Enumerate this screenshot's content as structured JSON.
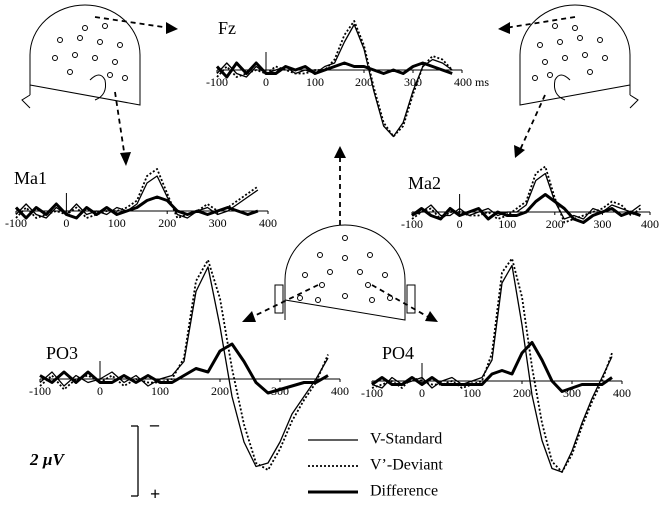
{
  "chart_data": [
    {
      "type": "line",
      "title": "Fz",
      "x": [
        -100,
        -80,
        -60,
        -40,
        -20,
        0,
        20,
        40,
        60,
        80,
        100,
        120,
        140,
        160,
        180,
        200,
        220,
        240,
        260,
        280,
        300,
        320,
        340,
        360,
        380
      ],
      "xlim": [
        -100,
        400
      ],
      "xticks": [
        -100,
        0,
        100,
        200,
        300,
        {
          "value": 400,
          "label": "400 ms"
        }
      ],
      "ylim": [
        2.2,
        -1.6
      ],
      "grid": false,
      "series": [
        {
          "name": "V-Standard",
          "color": "#000000",
          "line_style": "solid",
          "line_width": 1.3,
          "values": [
            0.1,
            -0.2,
            0.1,
            0.2,
            -0.1,
            0.1,
            0.0,
            -0.1,
            0.1,
            0.0,
            0.1,
            -0.1,
            -0.2,
            -0.8,
            -1.3,
            -0.6,
            0.6,
            1.6,
            1.9,
            1.5,
            0.6,
            -0.1,
            -0.3,
            -0.2,
            0.0
          ]
        },
        {
          "name": "V’-Deviant",
          "color": "#000000",
          "line_style": "dotted",
          "line_width": 1.8,
          "values": [
            0.2,
            -0.1,
            0.2,
            0.1,
            0.0,
            0.1,
            -0.1,
            0.0,
            0.1,
            0.1,
            0.0,
            0.0,
            -0.3,
            -1.0,
            -1.4,
            -0.7,
            0.5,
            1.5,
            1.9,
            1.6,
            0.7,
            -0.1,
            -0.4,
            -0.3,
            0.0
          ]
        },
        {
          "name": "Difference",
          "color": "#000000",
          "line_style": "solid",
          "line_width": 3,
          "values": [
            -0.1,
            0.2,
            -0.2,
            0.1,
            -0.2,
            0.1,
            0.1,
            -0.1,
            0.0,
            -0.1,
            0.1,
            0.0,
            -0.1,
            -0.2,
            -0.1,
            -0.1,
            0.0,
            0.1,
            0.0,
            0.1,
            -0.1,
            -0.2,
            -0.1,
            0.0,
            0.1
          ]
        }
      ]
    },
    {
      "type": "line",
      "title": "Ma1",
      "x": [
        -100,
        -80,
        -60,
        -40,
        -20,
        0,
        20,
        40,
        60,
        80,
        100,
        120,
        140,
        160,
        180,
        200,
        220,
        240,
        260,
        280,
        300,
        320,
        340,
        360,
        380
      ],
      "xlim": [
        -100,
        400
      ],
      "xticks": [
        -100,
        0,
        100,
        200,
        300,
        400
      ],
      "ylim": [
        1.0,
        -1.6
      ],
      "grid": false,
      "series": [
        {
          "name": "V-Standard",
          "color": "#000000",
          "line_style": "solid",
          "line_width": 1.3,
          "values": [
            0.1,
            -0.2,
            0.1,
            0.2,
            -0.1,
            0.1,
            -0.2,
            0.1,
            0.0,
            0.1,
            -0.1,
            0.0,
            -0.2,
            -0.8,
            -1.0,
            -0.4,
            0.1,
            0.2,
            0.0,
            -0.1,
            0.1,
            0.0,
            -0.2,
            -0.4,
            -0.6
          ]
        },
        {
          "name": "V’-Deviant",
          "color": "#000000",
          "line_style": "dotted",
          "line_width": 1.8,
          "values": [
            0.2,
            -0.1,
            0.2,
            0.1,
            0.0,
            0.1,
            -0.1,
            0.2,
            0.1,
            0.0,
            0.0,
            -0.1,
            -0.3,
            -1.0,
            -1.2,
            -0.5,
            0.2,
            0.1,
            0.0,
            -0.2,
            0.0,
            -0.1,
            -0.3,
            -0.5,
            -0.7
          ]
        },
        {
          "name": "Difference",
          "color": "#000000",
          "line_style": "solid",
          "line_width": 3,
          "values": [
            -0.1,
            0.2,
            -0.1,
            0.1,
            -0.2,
            0.1,
            0.2,
            -0.1,
            0.1,
            -0.1,
            0.1,
            0.0,
            -0.1,
            -0.3,
            -0.4,
            -0.3,
            0.0,
            0.1,
            0.0,
            0.1,
            0.0,
            -0.1,
            0.0,
            0.1,
            0.0
          ]
        }
      ]
    },
    {
      "type": "line",
      "title": "Ma2",
      "x": [
        -100,
        -80,
        -60,
        -40,
        -20,
        0,
        20,
        40,
        60,
        80,
        100,
        120,
        140,
        160,
        180,
        200,
        220,
        240,
        260,
        280,
        300,
        320,
        340,
        360,
        380
      ],
      "xlim": [
        -100,
        400
      ],
      "xticks": [
        -100,
        0,
        100,
        200,
        300,
        400
      ],
      "ylim": [
        1.0,
        -1.6
      ],
      "grid": false,
      "series": [
        {
          "name": "V-Standard",
          "color": "#000000",
          "line_style": "solid",
          "line_width": 1.3,
          "values": [
            0.1,
            0.0,
            -0.2,
            0.1,
            0.1,
            -0.1,
            0.1,
            0.0,
            -0.1,
            0.1,
            0.0,
            0.0,
            -0.2,
            -0.9,
            -1.1,
            -0.3,
            0.2,
            0.1,
            0.2,
            -0.1,
            0.0,
            -0.2,
            -0.1,
            0.0,
            -0.2
          ]
        },
        {
          "name": "V’-Deviant",
          "color": "#000000",
          "line_style": "dotted",
          "line_width": 1.8,
          "values": [
            0.2,
            0.0,
            -0.1,
            0.2,
            0.0,
            0.0,
            0.1,
            0.1,
            0.0,
            0.2,
            0.1,
            -0.1,
            -0.3,
            -1.1,
            -1.3,
            -0.4,
            0.3,
            0.2,
            0.1,
            0.0,
            -0.1,
            -0.3,
            -0.2,
            0.1,
            -0.1
          ]
        },
        {
          "name": "Difference",
          "color": "#000000",
          "line_style": "solid",
          "line_width": 3,
          "values": [
            0.1,
            -0.1,
            0.1,
            0.2,
            -0.1,
            0.1,
            0.0,
            -0.1,
            0.2,
            0.0,
            0.1,
            0.1,
            0.0,
            -0.3,
            -0.5,
            -0.3,
            -0.1,
            0.2,
            0.3,
            0.1,
            0.0,
            -0.1,
            0.1,
            0.0,
            0.1
          ]
        }
      ]
    },
    {
      "type": "line",
      "title": "PO3",
      "x": [
        -100,
        -80,
        -60,
        -40,
        -20,
        0,
        20,
        40,
        60,
        80,
        100,
        120,
        140,
        160,
        180,
        200,
        220,
        240,
        260,
        280,
        300,
        320,
        340,
        360,
        380
      ],
      "xlim": [
        -100,
        400
      ],
      "xticks": [
        -100,
        0,
        100,
        200,
        300,
        400
      ],
      "ylim": [
        3.0,
        -3.6
      ],
      "grid": false,
      "series": [
        {
          "name": "V-Standard",
          "color": "#000000",
          "line_style": "solid",
          "line_width": 1.3,
          "values": [
            0.1,
            -0.2,
            0.2,
            -0.1,
            0.1,
            0.0,
            -0.2,
            0.1,
            -0.1,
            0.2,
            0.0,
            -0.1,
            -0.5,
            -2.5,
            -3.2,
            -1.5,
            0.5,
            1.8,
            2.5,
            2.4,
            1.8,
            1.0,
            0.5,
            0.0,
            -0.6
          ]
        },
        {
          "name": "V’-Deviant",
          "color": "#000000",
          "line_style": "dotted",
          "line_width": 1.8,
          "values": [
            0.2,
            -0.1,
            0.3,
            0.0,
            -0.1,
            0.1,
            -0.1,
            0.2,
            0.0,
            0.1,
            0.1,
            0.0,
            -0.6,
            -2.8,
            -3.4,
            -2.3,
            -0.3,
            1.3,
            2.4,
            2.6,
            2.0,
            1.2,
            0.6,
            0.1,
            -0.7
          ]
        },
        {
          "name": "Difference",
          "color": "#000000",
          "line_style": "solid",
          "line_width": 3,
          "values": [
            -0.1,
            0.1,
            -0.2,
            0.1,
            -0.2,
            0.1,
            0.1,
            -0.1,
            0.1,
            -0.1,
            0.1,
            0.1,
            -0.1,
            -0.3,
            -0.2,
            -0.8,
            -1.0,
            -0.5,
            0.1,
            0.4,
            0.3,
            0.2,
            0.1,
            0.1,
            -0.1
          ]
        }
      ]
    },
    {
      "type": "line",
      "title": "PO4",
      "x": [
        -100,
        -80,
        -60,
        -40,
        -20,
        0,
        20,
        40,
        60,
        80,
        100,
        120,
        140,
        160,
        180,
        200,
        220,
        240,
        260,
        280,
        300,
        320,
        340,
        360,
        380
      ],
      "xlim": [
        -100,
        400
      ],
      "xticks": [
        -100,
        0,
        100,
        200,
        300,
        400
      ],
      "ylim": [
        3.0,
        -3.6
      ],
      "grid": false,
      "series": [
        {
          "name": "V-Standard",
          "color": "#000000",
          "line_style": "solid",
          "line_width": 1.3,
          "values": [
            0.1,
            0.2,
            -0.1,
            0.1,
            0.0,
            -0.1,
            0.2,
            0.0,
            -0.1,
            0.1,
            0.0,
            -0.1,
            -0.6,
            -2.8,
            -3.3,
            -1.6,
            0.4,
            1.7,
            2.5,
            2.6,
            2.0,
            1.2,
            0.5,
            -0.1,
            -0.7
          ]
        },
        {
          "name": "V’-Deviant",
          "color": "#000000",
          "line_style": "dotted",
          "line_width": 1.8,
          "values": [
            0.2,
            0.1,
            0.0,
            0.2,
            -0.1,
            0.0,
            0.1,
            0.1,
            0.0,
            0.2,
            0.1,
            0.0,
            -0.8,
            -3.1,
            -3.5,
            -2.4,
            -0.4,
            1.2,
            2.3,
            2.6,
            2.1,
            1.3,
            0.6,
            0.0,
            -0.8
          ]
        },
        {
          "name": "Difference",
          "color": "#000000",
          "line_style": "solid",
          "line_width": 3,
          "values": [
            0.1,
            -0.1,
            0.1,
            0.1,
            -0.1,
            0.1,
            -0.1,
            0.1,
            0.1,
            0.1,
            0.1,
            0.1,
            -0.2,
            -0.3,
            -0.2,
            -0.8,
            -1.1,
            -0.6,
            0.0,
            0.3,
            0.2,
            0.1,
            0.1,
            0.1,
            -0.1
          ]
        }
      ]
    }
  ],
  "scale_bar": {
    "label": "2 µV",
    "value": 2,
    "minus_label": "–",
    "plus_label": "+"
  }
}
